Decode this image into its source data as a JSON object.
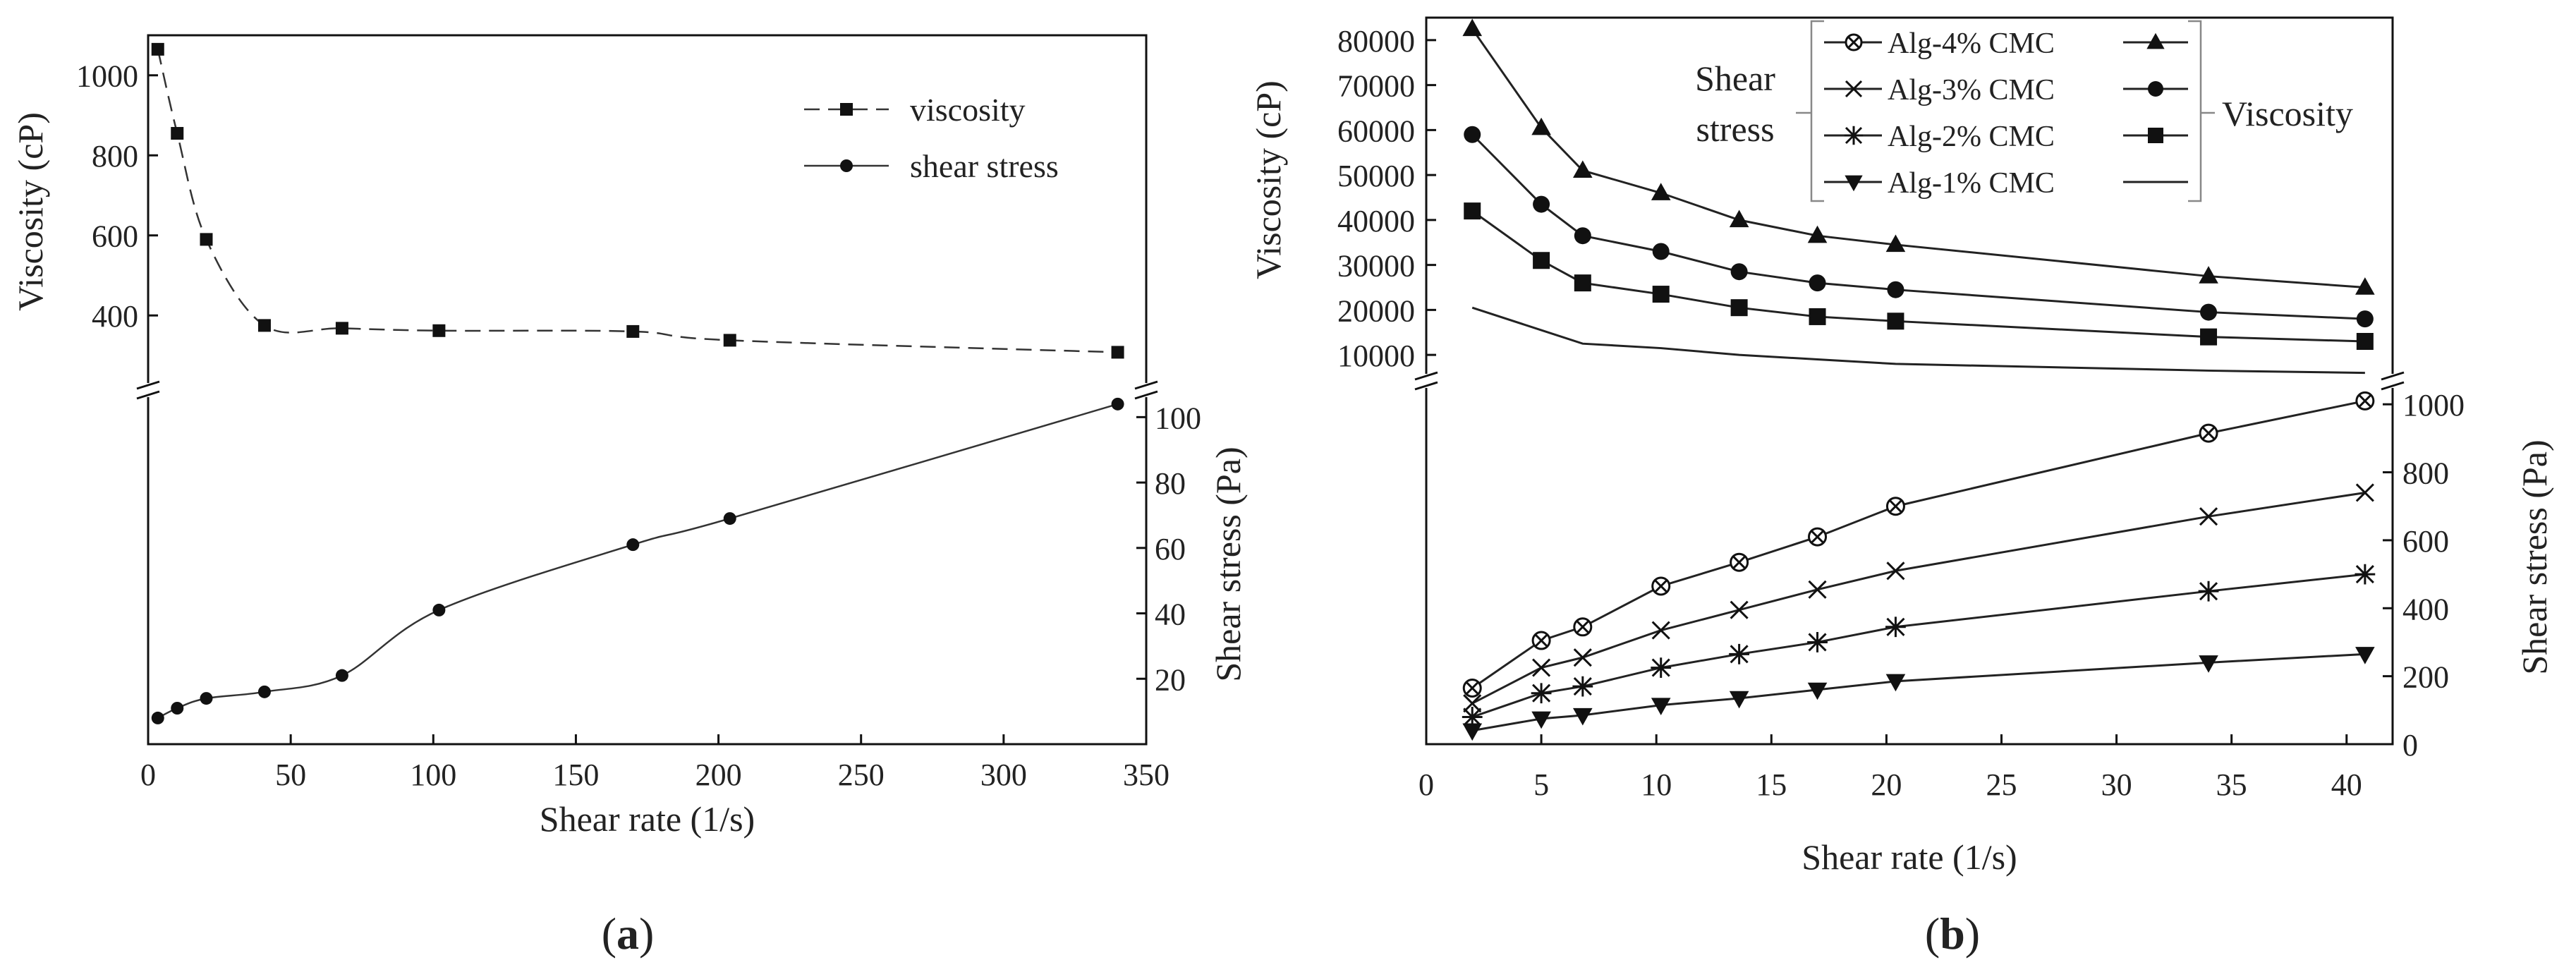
{
  "panels": {
    "a_label": "a",
    "b_label": "b",
    "label_open": "(",
    "label_close": ")"
  },
  "chart_data": [
    {
      "type": "line",
      "id": "a",
      "title": "",
      "xlabel": "Shear rate (1/s)",
      "xlim": [
        0,
        350
      ],
      "xticks": [
        0,
        50,
        100,
        150,
        200,
        250,
        300,
        350
      ],
      "top_axis": {
        "ylabel": "Viscosity (cP)",
        "ylim": [
          240,
          1100
        ],
        "yticks": [
          400,
          600,
          800,
          1000
        ]
      },
      "bottom_axis": {
        "ylabel": "Shear stress (Pa)",
        "ylim": [
          0,
          110
        ],
        "yticks": [
          20,
          40,
          60,
          80,
          100
        ]
      },
      "legend": {
        "position": "top-right",
        "entries": [
          "viscosity",
          "shear stress"
        ]
      },
      "series": [
        {
          "name": "viscosity",
          "axis": "top",
          "marker": "square",
          "line": "dashed",
          "x": [
            3.4,
            10.2,
            20.4,
            40.8,
            68,
            102,
            170,
            204,
            340
          ],
          "y": [
            1065,
            855,
            590,
            375,
            368,
            362,
            360,
            338,
            308
          ]
        },
        {
          "name": "shear stress",
          "axis": "bottom",
          "marker": "circle",
          "line": "solid",
          "x": [
            3.4,
            10.2,
            20.4,
            40.8,
            68,
            102,
            170,
            204,
            340
          ],
          "y": [
            8,
            11,
            14,
            16,
            21,
            41,
            61,
            69,
            104
          ]
        }
      ]
    },
    {
      "type": "line",
      "id": "b",
      "title": "",
      "xlabel": "Shear rate (1/s)",
      "xlim": [
        0,
        42
      ],
      "xticks": [
        0,
        5,
        10,
        15,
        20,
        25,
        30,
        35,
        40
      ],
      "xtick_labels": [
        "0",
        "5",
        "10",
        "15",
        "20",
        "25",
        "30",
        "35",
        "40"
      ],
      "top_axis": {
        "ylabel": "Viscosity (cP)",
        "ylim": [
          5000,
          85000
        ],
        "yticks": [
          10000,
          20000,
          30000,
          40000,
          50000,
          60000,
          70000,
          80000
        ]
      },
      "bottom_axis": {
        "ylabel": "Shear stress (Pa)",
        "ylim": [
          0,
          1100
        ],
        "yticks": [
          0,
          200,
          400,
          600,
          800,
          1000
        ]
      },
      "legend": {
        "position": "top",
        "left_group_label_1": "Shear",
        "left_group_label_2": "stress",
        "right_group_label": "Viscosity",
        "entries": [
          "Alg-4% CMC",
          "Alg-3% CMC",
          "Alg-2% CMC",
          "Alg-1% CMC"
        ]
      },
      "x": [
        2,
        5,
        6.8,
        10.2,
        13.6,
        17,
        20.4,
        34,
        40.8
      ],
      "series": [
        {
          "name": "Alg-4% CMC",
          "quantity": "viscosity",
          "axis": "top",
          "marker": "triangle-up",
          "y": [
            82500,
            60500,
            51000,
            46000,
            40000,
            36500,
            34500,
            27500,
            25000
          ]
        },
        {
          "name": "Alg-3% CMC",
          "quantity": "viscosity",
          "axis": "top",
          "marker": "circle",
          "y": [
            59000,
            43500,
            36500,
            33000,
            28500,
            26000,
            24500,
            19500,
            18000
          ]
        },
        {
          "name": "Alg-2% CMC",
          "quantity": "viscosity",
          "axis": "top",
          "marker": "square",
          "y": [
            42000,
            31000,
            26000,
            23500,
            20500,
            18500,
            17500,
            14000,
            13000
          ]
        },
        {
          "name": "Alg-1% CMC",
          "quantity": "viscosity",
          "axis": "top",
          "marker": "none",
          "y": [
            20500,
            15500,
            12500,
            11500,
            10000,
            9000,
            8000,
            6500,
            6000
          ]
        },
        {
          "name": "Alg-4% CMC",
          "quantity": "shear stress",
          "axis": "bottom",
          "marker": "crossed-circle",
          "y": [
            165,
            305,
            345,
            465,
            535,
            610,
            700,
            915,
            1010
          ]
        },
        {
          "name": "Alg-3% CMC",
          "quantity": "shear stress",
          "axis": "bottom",
          "marker": "x",
          "y": [
            120,
            225,
            255,
            335,
            395,
            455,
            510,
            670,
            740
          ]
        },
        {
          "name": "Alg-2% CMC",
          "quantity": "shear stress",
          "axis": "bottom",
          "marker": "asterisk",
          "y": [
            80,
            150,
            170,
            225,
            265,
            300,
            345,
            450,
            500
          ]
        },
        {
          "name": "Alg-1% CMC",
          "quantity": "shear stress",
          "axis": "bottom",
          "marker": "triangle-down",
          "y": [
            40,
            75,
            85,
            115,
            135,
            160,
            185,
            240,
            265
          ]
        }
      ]
    }
  ]
}
